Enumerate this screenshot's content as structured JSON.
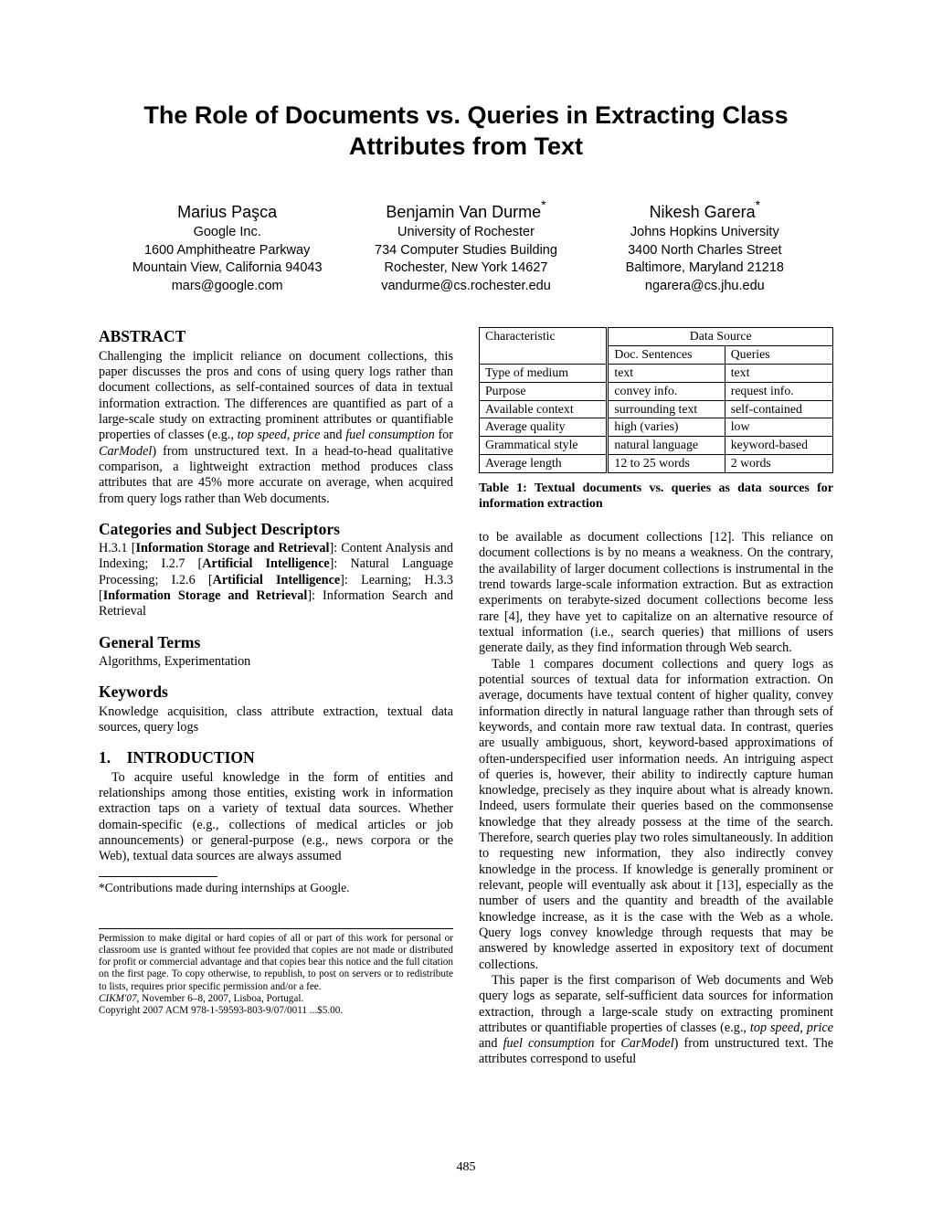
{
  "title": "The Role of Documents vs. Queries in Extracting Class Attributes from Text",
  "authors": [
    {
      "name": "Marius Paşca",
      "sup": "",
      "lines": [
        "Google Inc.",
        "1600 Amphitheatre Parkway",
        "Mountain View, California 94043",
        "mars@google.com"
      ]
    },
    {
      "name": "Benjamin Van Durme",
      "sup": "*",
      "lines": [
        "University of Rochester",
        "734 Computer Studies Building",
        "Rochester, New York 14627",
        "vandurme@cs.rochester.edu"
      ]
    },
    {
      "name": "Nikesh Garera",
      "sup": "*",
      "lines": [
        "Johns Hopkins University",
        "3400 North Charles Street",
        "Baltimore, Maryland 21218",
        "ngarera@cs.jhu.edu"
      ]
    }
  ],
  "abstract_head": "ABSTRACT",
  "abstract_body": "Challenging the implicit reliance on document collections, this paper discusses the pros and cons of using query logs rather than document collections, as self-contained sources of data in textual information extraction. The differences are quantified as part of a large-scale study on extracting prominent attributes or quantifiable properties of classes (e.g., <span class=\"italic\">top speed</span>, <span class=\"italic\">price</span> and <span class=\"italic\">fuel consumption</span> for <span class=\"italic\">CarModel</span>) from unstructured text. In a head-to-head qualitative comparison, a lightweight extraction method produces class attributes that are 45% more accurate on average, when acquired from query logs rather than Web documents.",
  "cats_head": "Categories and Subject Descriptors",
  "cats_body": "H.3.1 [<span class=\"bold\">Information Storage and Retrieval</span>]: Content Analysis and Indexing; I.2.7 [<span class=\"bold\">Artificial Intelligence</span>]: Natural Language Processing; I.2.6 [<span class=\"bold\">Artificial Intelligence</span>]: Learning; H.3.3 [<span class=\"bold\">Information Storage and Retrieval</span>]: Information Search and Retrieval",
  "gen_head": "General Terms",
  "gen_body": "Algorithms, Experimentation",
  "kw_head": "Keywords",
  "kw_body": "Knowledge acquisition, class attribute extraction, textual data sources, query logs",
  "intro_head": "1. INTRODUCTION",
  "intro_p1": "To acquire useful knowledge in the form of entities and relationships among those entities, existing work in information extraction taps on a variety of textual data sources. Whether domain-specific (e.g., collections of medical articles or job announcements) or general-purpose (e.g., news corpora or the Web), textual data sources are always assumed",
  "footnote": "*Contributions made during internships at Google.",
  "copyright_p1": "Permission to make digital or hard copies of all or part of this work for personal or classroom use is granted without fee provided that copies are not made or distributed for profit or commercial advantage and that copies bear this notice and the full citation on the first page. To copy otherwise, to republish, to post on servers or to redistribute to lists, requires prior specific permission and/or a fee.",
  "copyright_venue": "CIKM'07,",
  "copyright_date": " November 6–8, 2007, Lisboa, Portugal.",
  "copyright_line": "Copyright 2007 ACM 978-1-59593-803-9/07/0011 ...$5.00.",
  "table": {
    "head1": "Characteristic",
    "head2": "Data Source",
    "sub1": "Doc. Sentences",
    "sub2": "Queries",
    "rows": [
      [
        "Type of medium",
        "text",
        "text"
      ],
      [
        "Purpose",
        "convey info.",
        "request info."
      ],
      [
        "Available context",
        "surrounding text",
        "self-contained"
      ],
      [
        "Average quality",
        "high (varies)",
        "low"
      ],
      [
        "Grammatical style",
        "natural language",
        "keyword-based"
      ],
      [
        "Average length",
        "12 to 25 words",
        "2 words"
      ]
    ]
  },
  "table_caption": "Table 1: Textual documents vs. queries as data sources for information extraction",
  "col2_p1": "to be available as document collections [12]. This reliance on document collections is by no means a weakness. On the contrary, the availability of larger document collections is instrumental in the trend towards large-scale information extraction. But as extraction experiments on terabyte-sized document collections become less rare [4], they have yet to capitalize on an alternative resource of textual information (i.e., search queries) that millions of users generate daily, as they find information through Web search.",
  "col2_p2": "Table 1 compares document collections and query logs as potential sources of textual data for information extraction. On average, documents have textual content of higher quality, convey information directly in natural language rather than through sets of keywords, and contain more raw textual data. In contrast, queries are usually ambiguous, short, keyword-based approximations of often-underspecified user information needs. An intriguing aspect of queries is, however, their ability to indirectly capture human knowledge, precisely as they inquire about what is already known. Indeed, users formulate their queries based on the commonsense knowledge that they already possess at the time of the search. Therefore, search queries play two roles simultaneously. In addition to requesting new information, they also indirectly convey knowledge in the process. If knowledge is generally prominent or relevant, people will eventually ask about it [13], especially as the number of users and the quantity and breadth of the available knowledge increase, as it is the case with the Web as a whole. Query logs convey knowledge through requests that may be answered by knowledge asserted in expository text of document collections.",
  "col2_p3": "This paper is the first comparison of Web documents and Web query logs as separate, self-sufficient data sources for information extraction, through a large-scale study on extracting prominent attributes or quantifiable properties of classes (e.g., <span class=\"italic\">top speed</span>, <span class=\"italic\">price</span> and <span class=\"italic\">fuel consumption</span> for <span class=\"italic\">CarModel</span>) from unstructured text. The attributes correspond to useful",
  "page_number": "485"
}
